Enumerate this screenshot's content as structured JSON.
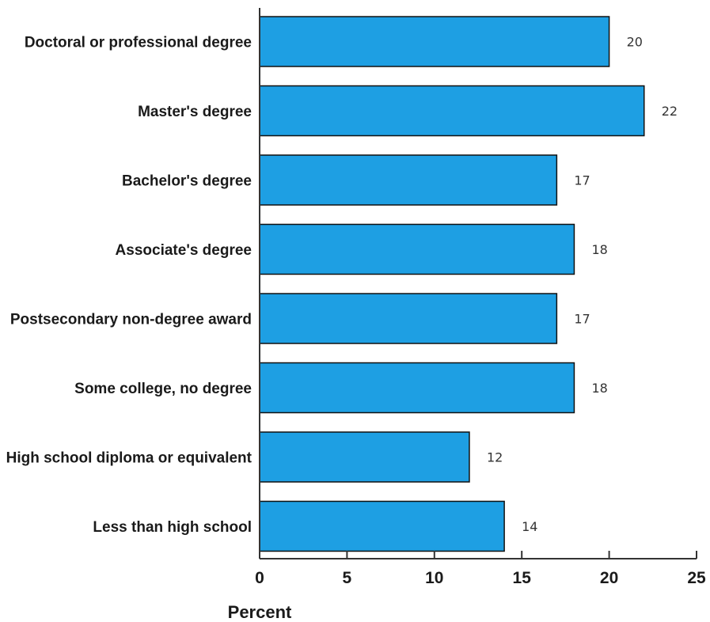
{
  "chart_data": {
    "type": "bar",
    "orientation": "horizontal",
    "categories": [
      "Doctoral or professional degree",
      "Master's degree",
      "Bachelor's degree",
      "Associate's degree",
      "Postsecondary non-degree award",
      "Some college, no degree",
      "High school diploma or equivalent",
      "Less than high school"
    ],
    "values": [
      20,
      22,
      17,
      18,
      17,
      18,
      12,
      14
    ],
    "value_labels": [
      "20",
      "22",
      "17",
      "18",
      "17",
      "18",
      "12",
      "14"
    ],
    "xlabel": "Percent",
    "xlim": [
      0,
      25
    ],
    "xticks": [
      0,
      5,
      10,
      15,
      20,
      25
    ],
    "xtick_labels": [
      "0",
      "5",
      "10",
      "15",
      "20",
      "25"
    ],
    "grid": false,
    "colors": {
      "bar_fill": "#1E9FE3",
      "bar_stroke": "#111111",
      "axis": "#333333"
    }
  }
}
